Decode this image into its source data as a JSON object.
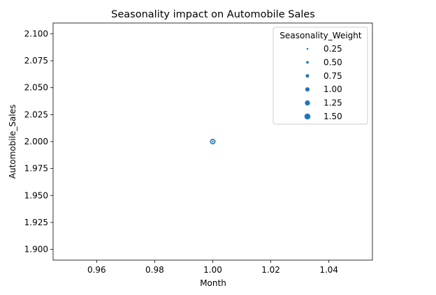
{
  "chart_data": {
    "type": "scatter",
    "title": "Seasonality impact on Automobile Sales",
    "xlabel": "Month",
    "ylabel": "Automobile_Sales",
    "xlim": [
      0.945,
      1.055
    ],
    "ylim": [
      1.89,
      2.11
    ],
    "xticks": [
      "0.96",
      "0.98",
      "1.00",
      "1.02",
      "1.04"
    ],
    "xtick_values": [
      0.96,
      0.98,
      1.0,
      1.02,
      1.04
    ],
    "yticks": [
      "1.900",
      "1.925",
      "1.950",
      "1.975",
      "2.000",
      "2.025",
      "2.050",
      "2.075",
      "2.100"
    ],
    "ytick_values": [
      1.9,
      1.925,
      1.95,
      1.975,
      2.0,
      2.025,
      2.05,
      2.075,
      2.1
    ],
    "grid": false,
    "legend_placement": "top-right",
    "point_color": "#1f77b4",
    "legend": {
      "title": "Seasonality_Weight",
      "entries": [
        "0.25",
        "0.50",
        "0.75",
        "1.00",
        "1.25",
        "1.50"
      ],
      "entry_values": [
        0.25,
        0.5,
        0.75,
        1.0,
        1.25,
        1.5
      ]
    },
    "points": [
      {
        "x": 1.0,
        "y": 2.0,
        "size": 1.5
      },
      {
        "x": 1.0,
        "y": 2.0,
        "size": 0.25
      }
    ]
  }
}
